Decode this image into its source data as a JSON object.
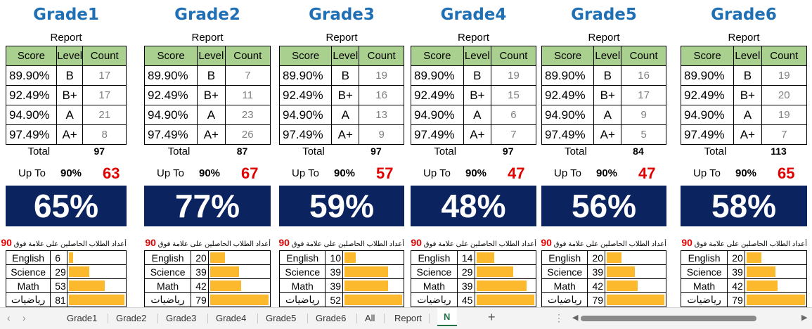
{
  "thresholds": [
    "89.90%",
    "92.49%",
    "94.90%",
    "97.49%"
  ],
  "levels": [
    "B",
    "B+",
    "A",
    "A+"
  ],
  "headers": {
    "score": "Score",
    "level": "Level",
    "count": "Count"
  },
  "report_label": "Report",
  "total_label": "Total",
  "upto_label": "Up To",
  "upto_pct": "90%",
  "above_label": "أعداد الطلاب الحاصلين على علامة فوق",
  "above_threshold": "90",
  "subject_names": [
    "English",
    "Science",
    "Math",
    "رياضيات"
  ],
  "bar_color": "#fdb92d",
  "panel_color": "#0b2460",
  "header_color": "#a9d08e",
  "title_color": "#1f6fb5",
  "grades": [
    {
      "title": "Grade1",
      "counts": [
        "17",
        "17",
        "21",
        "8"
      ],
      "total": "97",
      "upto_count": "63",
      "pct": "65%",
      "subjects": [
        {
          "count": "6",
          "fill": 0.07
        },
        {
          "count": "29",
          "fill": 0.36
        },
        {
          "count": "53",
          "fill": 0.65
        },
        {
          "count": "81",
          "fill": 1.0
        }
      ]
    },
    {
      "title": "Grade2",
      "counts": [
        "7",
        "11",
        "23",
        "26"
      ],
      "total": "87",
      "upto_count": "67",
      "pct": "77%",
      "subjects": [
        {
          "count": "20",
          "fill": 0.25
        },
        {
          "count": "39",
          "fill": 0.49
        },
        {
          "count": "42",
          "fill": 0.53
        },
        {
          "count": "79",
          "fill": 1.0
        }
      ]
    },
    {
      "title": "Grade3",
      "counts": [
        "19",
        "16",
        "13",
        "9"
      ],
      "total": "97",
      "upto_count": "57",
      "pct": "59%",
      "subjects": [
        {
          "count": "10",
          "fill": 0.19
        },
        {
          "count": "39",
          "fill": 0.75
        },
        {
          "count": "39",
          "fill": 0.75
        },
        {
          "count": "52",
          "fill": 1.0
        }
      ]
    },
    {
      "title": "Grade4",
      "counts": [
        "19",
        "15",
        "6",
        "7"
      ],
      "total": "97",
      "upto_count": "47",
      "pct": "48%",
      "subjects": [
        {
          "count": "14",
          "fill": 0.31
        },
        {
          "count": "29",
          "fill": 0.64
        },
        {
          "count": "39",
          "fill": 0.87
        },
        {
          "count": "45",
          "fill": 1.0
        }
      ]
    },
    {
      "title": "Grade5",
      "counts": [
        "16",
        "17",
        "9",
        "5"
      ],
      "total": "84",
      "upto_count": "47",
      "pct": "56%",
      "subjects": [
        {
          "count": "20",
          "fill": 0.25
        },
        {
          "count": "39",
          "fill": 0.49
        },
        {
          "count": "42",
          "fill": 0.53
        },
        {
          "count": "79",
          "fill": 1.0
        }
      ]
    },
    {
      "title": "Grade6",
      "counts": [
        "19",
        "20",
        "19",
        "7"
      ],
      "total": "113",
      "upto_count": "65",
      "pct": "58%",
      "subjects": [
        {
          "count": "20",
          "fill": 0.25
        },
        {
          "count": "39",
          "fill": 0.49
        },
        {
          "count": "42",
          "fill": 0.53
        },
        {
          "count": "79",
          "fill": 1.0
        }
      ]
    }
  ],
  "sheet_tabs": [
    "Grade1",
    "Grade2",
    "Grade3",
    "Grade4",
    "Grade5",
    "Grade6",
    "All",
    "Report"
  ],
  "active_tab": "N",
  "add_sheet": "+"
}
